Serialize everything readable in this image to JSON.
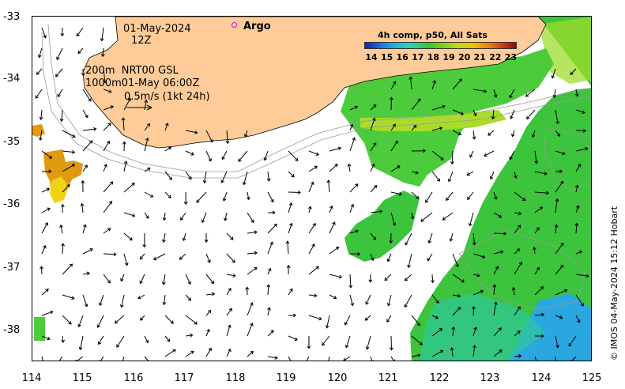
{
  "info": {
    "date": "01-May-2024",
    "hour": "12Z",
    "line_200m": "200m  NRT00 GSL",
    "line_1000m": "1000m01-May 06:00Z",
    "vector_scale": "0.5m/s (1kt 24h)"
  },
  "legend": {
    "argo_label": "Argo",
    "colorbar_title": "4h comp, p50, All Sats",
    "colorbar_ticks": [
      "14",
      "15",
      "16",
      "17",
      "18",
      "19",
      "20",
      "21",
      "22",
      "23"
    ]
  },
  "axes": {
    "x_ticks": [
      "114",
      "115",
      "116",
      "117",
      "118",
      "119",
      "120",
      "121",
      "122",
      "123",
      "124",
      "125"
    ],
    "y_ticks": [
      "-33",
      "-34",
      "-35",
      "-36",
      "-37",
      "-38"
    ]
  },
  "credit": "© IMOS 04-May-2024 15:12 Hobart",
  "colors": {
    "land": "#ffcc99",
    "sst_green": "#3cc43c",
    "sst_lime": "#9fdc2c",
    "sst_blue": "#2aa7e0",
    "sst_orange": "#e09a10",
    "argo": "#e600e6"
  }
}
